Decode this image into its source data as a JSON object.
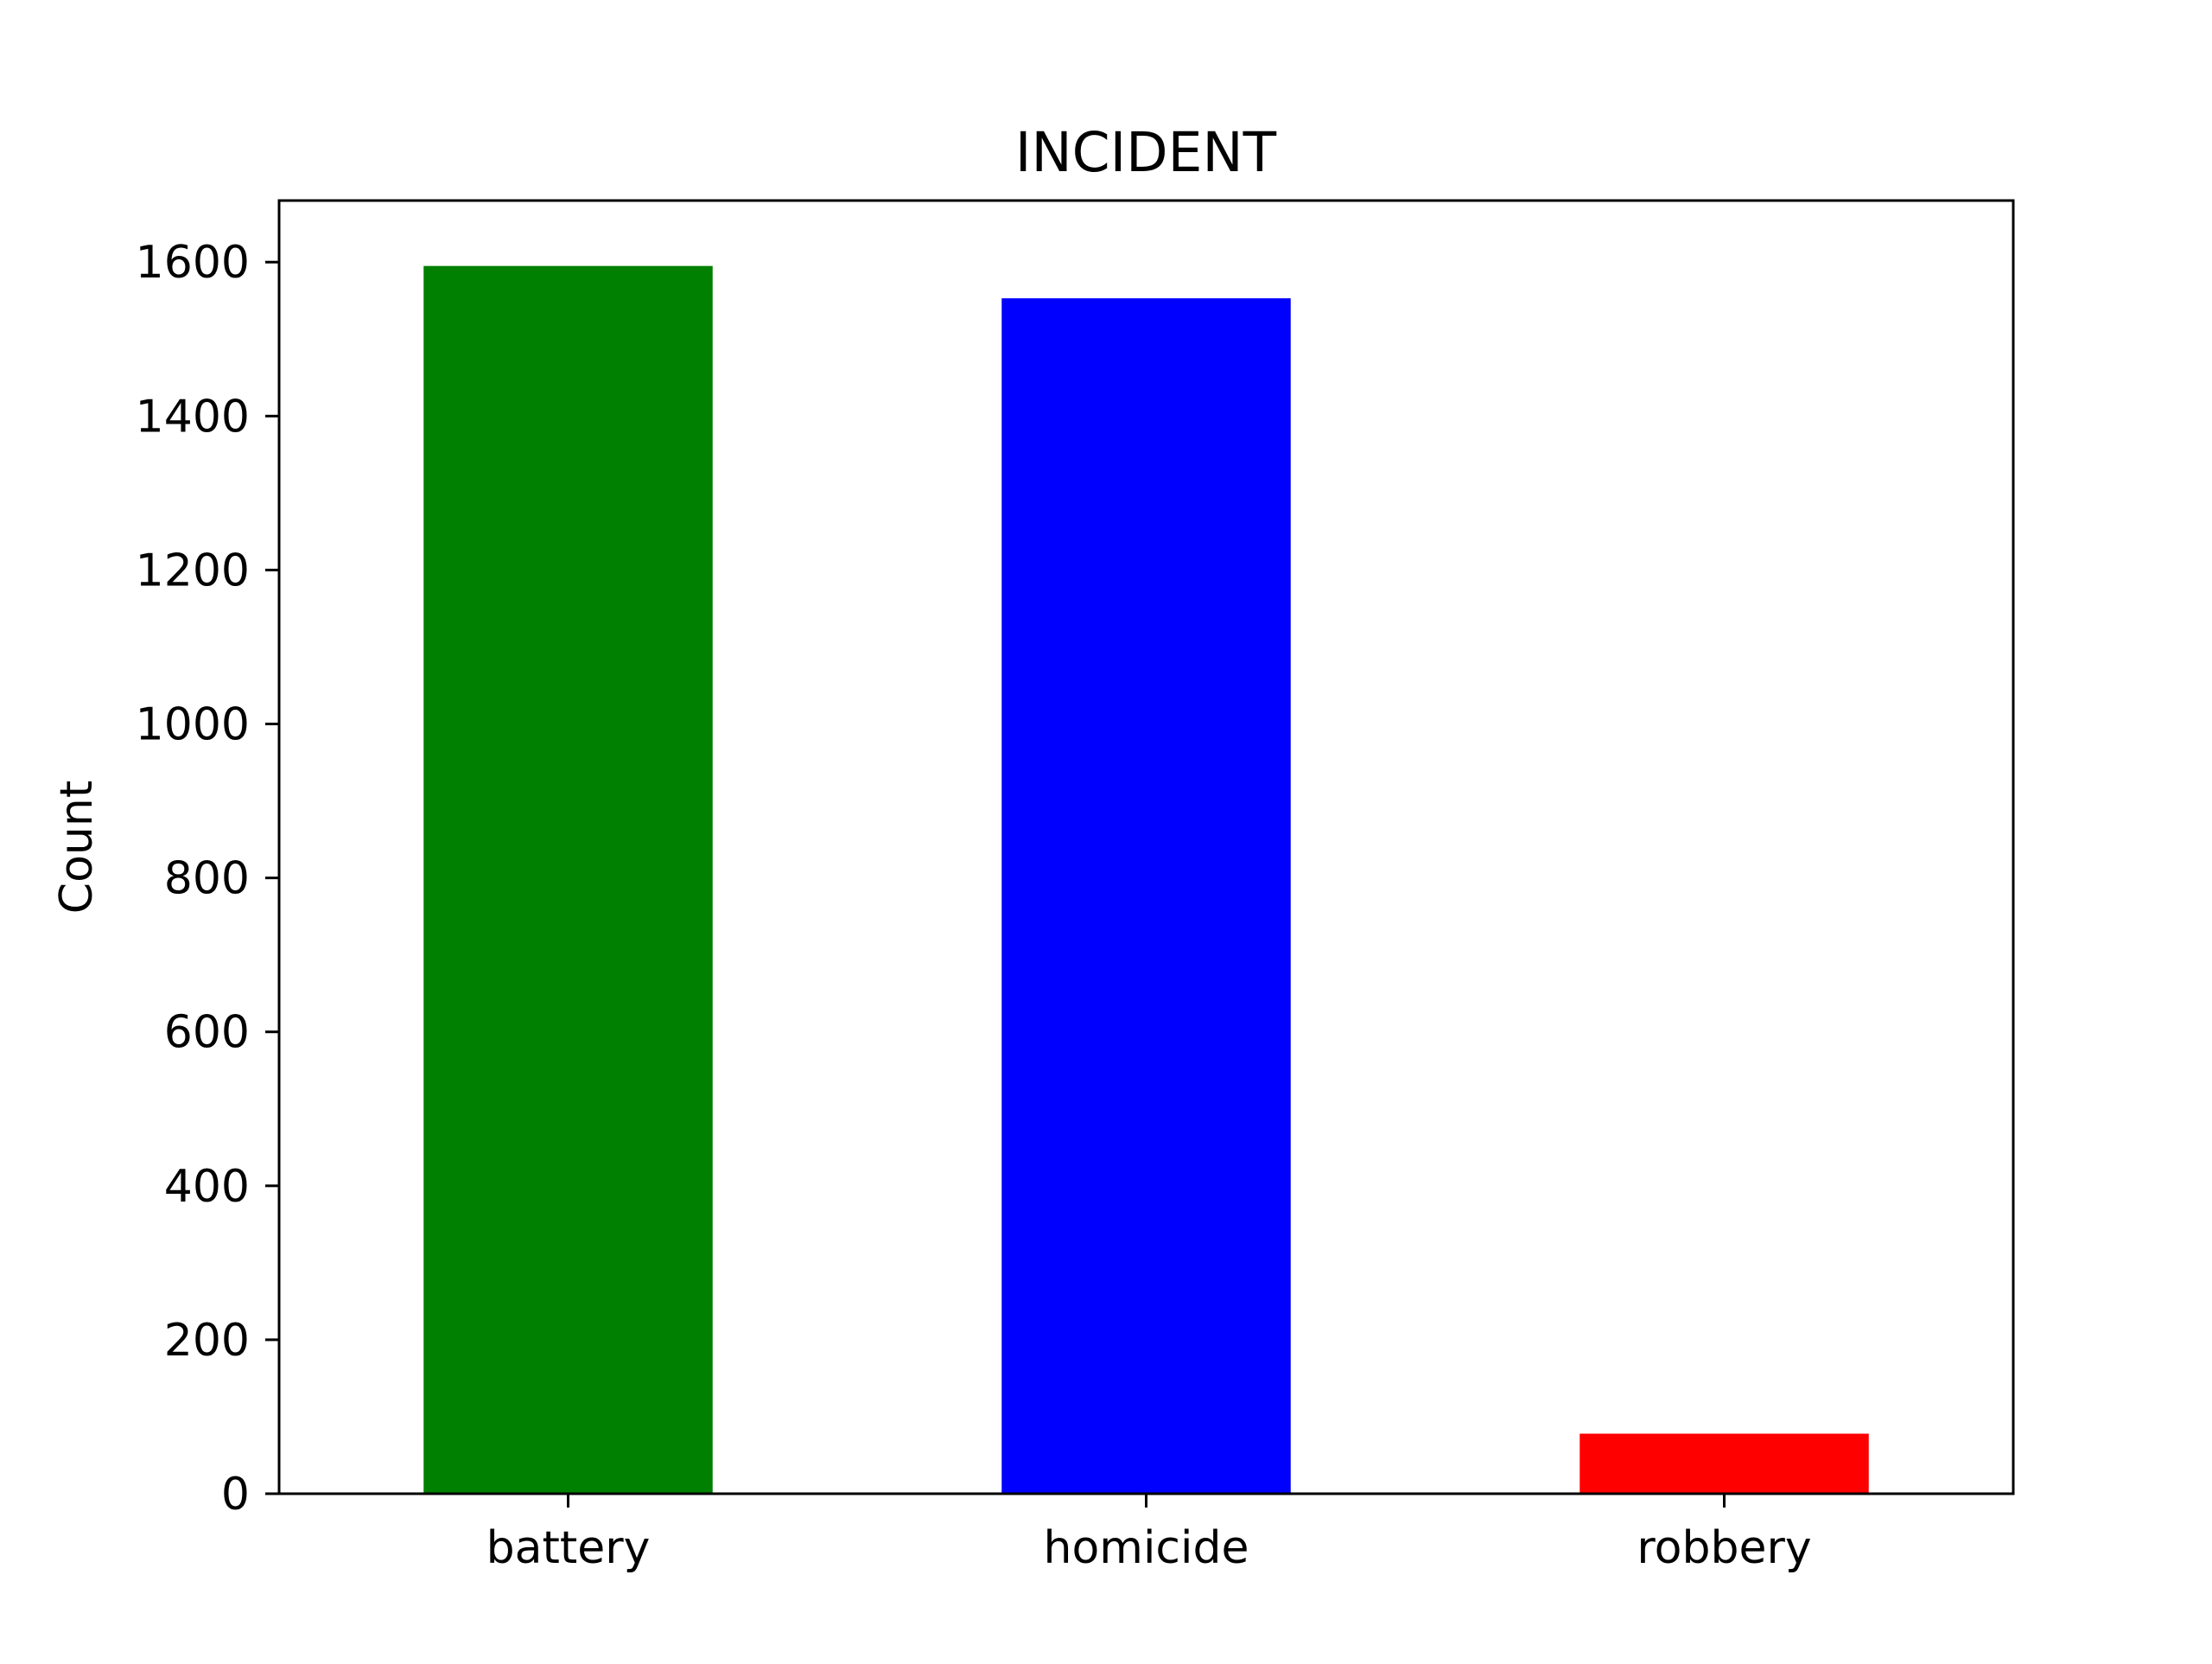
{
  "chart_data": {
    "type": "bar",
    "title": "INCIDENT",
    "xlabel": "",
    "ylabel": "Count",
    "categories": [
      "battery",
      "homicide",
      "robbery"
    ],
    "values": [
      1595,
      1553,
      78
    ],
    "colors": [
      "#008000",
      "#0000ff",
      "#ff0000"
    ],
    "ylim": [
      0,
      1680
    ],
    "yticks": [
      0,
      200,
      400,
      600,
      800,
      1000,
      1200,
      1400,
      1600
    ],
    "grid": false,
    "legend": "none"
  }
}
